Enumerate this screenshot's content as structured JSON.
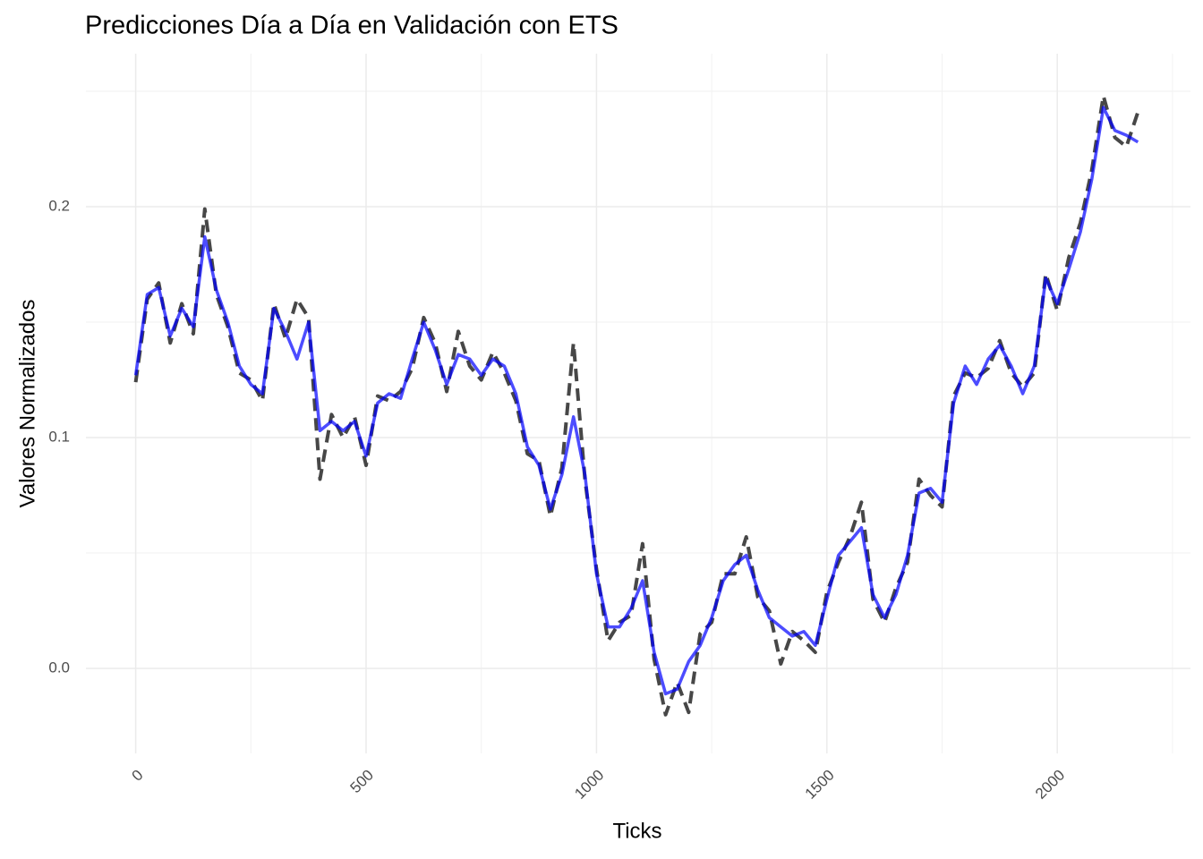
{
  "chart_data": {
    "type": "line",
    "title": "Predicciones Día a Día en Validación con ETS",
    "x_label": "Ticks",
    "y_label": "Valores Normalizados",
    "x": [
      0,
      25,
      50,
      75,
      100,
      125,
      150,
      175,
      200,
      225,
      250,
      275,
      300,
      325,
      350,
      375,
      400,
      425,
      450,
      475,
      500,
      525,
      550,
      575,
      600,
      625,
      650,
      675,
      700,
      725,
      750,
      775,
      800,
      825,
      850,
      875,
      900,
      925,
      950,
      975,
      1000,
      1025,
      1050,
      1075,
      1100,
      1125,
      1150,
      1175,
      1200,
      1225,
      1250,
      1275,
      1300,
      1325,
      1350,
      1375,
      1400,
      1425,
      1450,
      1475,
      1500,
      1525,
      1550,
      1575,
      1600,
      1625,
      1650,
      1675,
      1700,
      1725,
      1750,
      1775,
      1800,
      1825,
      1850,
      1875,
      1900,
      1925,
      1950,
      1975,
      2000,
      2025,
      2050,
      2075,
      2100,
      2125,
      2150,
      2175
    ],
    "series": [
      {
        "color": "#333333",
        "linestyle": "dashed",
        "values": [
          0.124,
          0.16,
          0.167,
          0.141,
          0.158,
          0.145,
          0.199,
          0.162,
          0.148,
          0.128,
          0.125,
          0.116,
          0.158,
          0.143,
          0.16,
          0.152,
          0.082,
          0.11,
          0.1,
          0.109,
          0.088,
          0.118,
          0.116,
          0.12,
          0.13,
          0.152,
          0.141,
          0.12,
          0.146,
          0.131,
          0.125,
          0.137,
          0.128,
          0.116,
          0.093,
          0.09,
          0.066,
          0.087,
          0.141,
          0.082,
          0.043,
          0.012,
          0.02,
          0.023,
          0.054,
          0.004,
          -0.02,
          -0.006,
          -0.019,
          0.015,
          0.02,
          0.041,
          0.041,
          0.057,
          0.031,
          0.025,
          0.002,
          0.016,
          0.012,
          0.007,
          0.033,
          0.046,
          0.057,
          0.072,
          0.03,
          0.02,
          0.035,
          0.046,
          0.082,
          0.075,
          0.07,
          0.118,
          0.128,
          0.126,
          0.13,
          0.142,
          0.128,
          0.122,
          0.128,
          0.171,
          0.155,
          0.178,
          0.193,
          0.216,
          0.248,
          0.23,
          0.226,
          0.241
        ]
      },
      {
        "color": "#0000ff",
        "linestyle": "solid",
        "values": [
          0.127,
          0.162,
          0.165,
          0.144,
          0.156,
          0.148,
          0.187,
          0.164,
          0.15,
          0.131,
          0.123,
          0.119,
          0.156,
          0.146,
          0.134,
          0.15,
          0.103,
          0.107,
          0.103,
          0.107,
          0.092,
          0.115,
          0.119,
          0.117,
          0.134,
          0.15,
          0.138,
          0.123,
          0.136,
          0.134,
          0.127,
          0.134,
          0.131,
          0.119,
          0.096,
          0.088,
          0.069,
          0.084,
          0.109,
          0.084,
          0.041,
          0.018,
          0.018,
          0.026,
          0.038,
          0.007,
          -0.011,
          -0.009,
          0.003,
          0.01,
          0.022,
          0.038,
          0.045,
          0.049,
          0.034,
          0.022,
          0.018,
          0.014,
          0.016,
          0.01,
          0.03,
          0.049,
          0.055,
          0.061,
          0.032,
          0.022,
          0.032,
          0.049,
          0.076,
          0.078,
          0.072,
          0.115,
          0.131,
          0.123,
          0.134,
          0.14,
          0.131,
          0.119,
          0.131,
          0.169,
          0.158,
          0.173,
          0.189,
          0.212,
          0.243,
          0.233,
          0.231,
          0.228
        ]
      }
    ],
    "xlim": [
      -108,
      2289
    ],
    "xticks": [
      0,
      500,
      1000,
      1500,
      2000
    ],
    "xminor": [
      250,
      750,
      1250,
      1750,
      2250
    ],
    "ylim": [
      -0.0368,
      0.2663
    ],
    "yticks": [
      {
        "value": 0,
        "label": "0.0"
      },
      0.1,
      0.2
    ],
    "yminor": [
      0.05,
      0.15,
      0.25
    ],
    "grid": true
  }
}
